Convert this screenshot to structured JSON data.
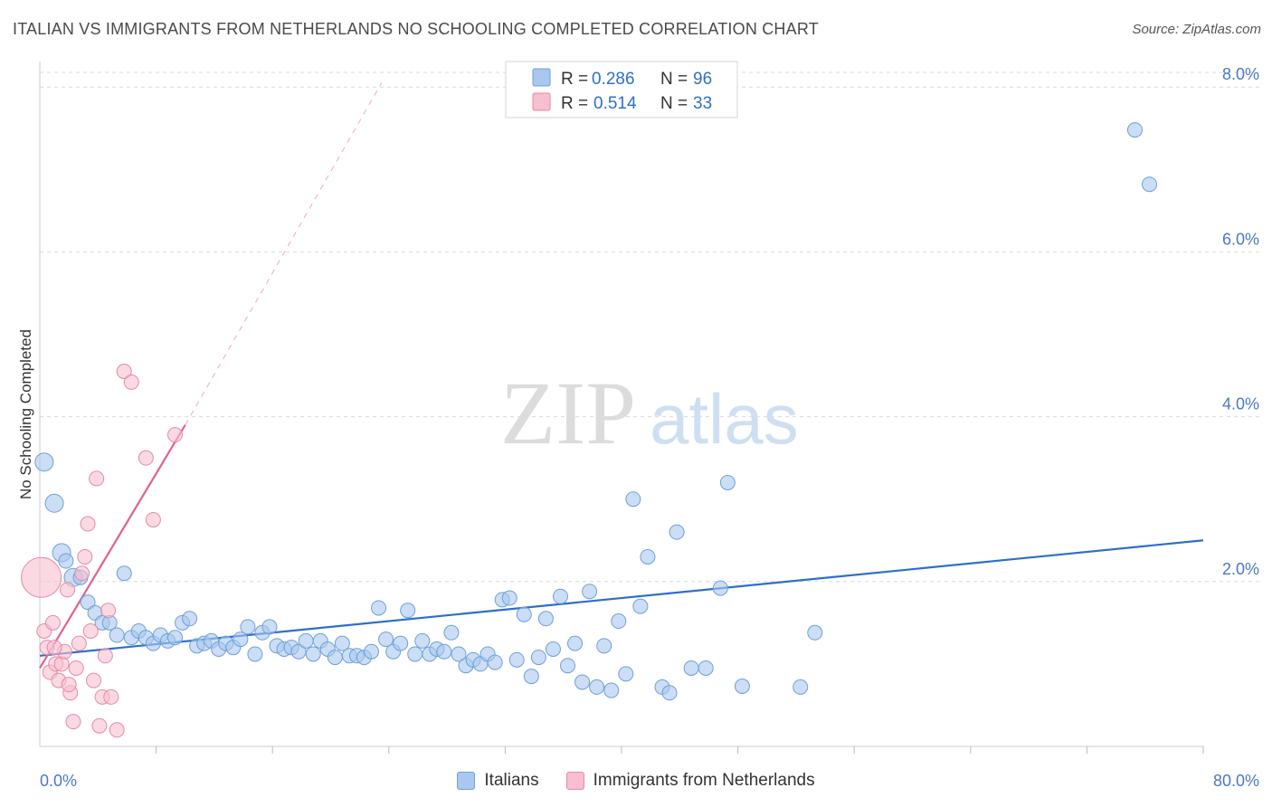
{
  "title": "ITALIAN VS IMMIGRANTS FROM NETHERLANDS NO SCHOOLING COMPLETED CORRELATION CHART",
  "source": "Source: ZipAtlas.com",
  "watermark": {
    "zip": "ZIP",
    "atlas": "atlas"
  },
  "colors": {
    "blue_fill": "#a9c8ef",
    "blue_stroke": "#6f9fd8",
    "blue_line": "#2d6fcc",
    "pink_fill": "#f7bfd0",
    "pink_stroke": "#e58aa6",
    "pink_line": "#e0618f",
    "tick_text": "#4a78c2",
    "grid": "#d9d9d9"
  },
  "legend": {
    "rows": [
      {
        "r_label": "R =",
        "r_value": "0.286",
        "n_label": "N =",
        "n_value": "96",
        "series": "blue"
      },
      {
        "r_label": "R =",
        "r_value": "0.514",
        "n_label": "N =",
        "n_value": "33",
        "series": "pink"
      }
    ]
  },
  "chart_data": {
    "type": "scatter",
    "title": "ITALIAN VS IMMIGRANTS FROM NETHERLANDS NO SCHOOLING COMPLETED CORRELATION CHART",
    "xlabel": "",
    "ylabel": "No Schooling Completed",
    "xlim": [
      0,
      80
    ],
    "ylim": [
      0,
      8.2
    ],
    "x_tick_labels": [
      "0.0%",
      "80.0%"
    ],
    "y_ticks": [
      2,
      4,
      6,
      8
    ],
    "y_tick_labels": [
      "2.0%",
      "4.0%",
      "6.0%",
      "8.0%"
    ],
    "grid": true,
    "legend_position": "top-center",
    "series": [
      {
        "name": "Italians",
        "color": "#a9c8ef",
        "trend": {
          "x": [
            0,
            80
          ],
          "y": [
            1.1,
            2.5
          ],
          "dashed_extension": false
        },
        "points": [
          [
            0.3,
            3.45,
            1
          ],
          [
            1.0,
            2.95,
            1
          ],
          [
            1.5,
            2.35,
            1
          ],
          [
            1.8,
            2.25,
            0
          ],
          [
            2.3,
            2.05,
            1
          ],
          [
            2.8,
            2.05,
            0
          ],
          [
            3.3,
            1.75,
            0
          ],
          [
            3.8,
            1.62,
            0
          ],
          [
            4.3,
            1.5,
            0
          ],
          [
            4.8,
            1.5,
            0
          ],
          [
            5.3,
            1.35,
            0
          ],
          [
            5.8,
            2.1,
            0
          ],
          [
            6.3,
            1.32,
            0
          ],
          [
            6.8,
            1.4,
            0
          ],
          [
            7.3,
            1.32,
            0
          ],
          [
            7.8,
            1.25,
            0
          ],
          [
            8.3,
            1.35,
            0
          ],
          [
            8.8,
            1.28,
            0
          ],
          [
            9.3,
            1.32,
            0
          ],
          [
            9.8,
            1.5,
            0
          ],
          [
            10.3,
            1.55,
            0
          ],
          [
            10.8,
            1.22,
            0
          ],
          [
            11.3,
            1.25,
            0
          ],
          [
            11.8,
            1.28,
            0
          ],
          [
            12.3,
            1.18,
            0
          ],
          [
            12.8,
            1.25,
            0
          ],
          [
            13.3,
            1.2,
            0
          ],
          [
            13.8,
            1.3,
            0
          ],
          [
            14.3,
            1.45,
            0
          ],
          [
            14.8,
            1.12,
            0
          ],
          [
            15.3,
            1.38,
            0
          ],
          [
            15.8,
            1.45,
            0
          ],
          [
            16.3,
            1.22,
            0
          ],
          [
            16.8,
            1.18,
            0
          ],
          [
            17.3,
            1.2,
            0
          ],
          [
            17.8,
            1.15,
            0
          ],
          [
            18.3,
            1.28,
            0
          ],
          [
            18.8,
            1.12,
            0
          ],
          [
            19.3,
            1.28,
            0
          ],
          [
            19.8,
            1.18,
            0
          ],
          [
            20.3,
            1.08,
            0
          ],
          [
            20.8,
            1.25,
            0
          ],
          [
            21.3,
            1.1,
            0
          ],
          [
            21.8,
            1.1,
            0
          ],
          [
            22.3,
            1.08,
            0
          ],
          [
            22.8,
            1.15,
            0
          ],
          [
            23.3,
            1.68,
            0
          ],
          [
            23.8,
            1.3,
            0
          ],
          [
            24.3,
            1.15,
            0
          ],
          [
            24.8,
            1.25,
            0
          ],
          [
            25.3,
            1.65,
            0
          ],
          [
            25.8,
            1.12,
            0
          ],
          [
            26.3,
            1.28,
            0
          ],
          [
            26.8,
            1.12,
            0
          ],
          [
            27.3,
            1.18,
            0
          ],
          [
            27.8,
            1.15,
            0
          ],
          [
            28.3,
            1.38,
            0
          ],
          [
            28.8,
            1.12,
            0
          ],
          [
            29.3,
            0.98,
            0
          ],
          [
            29.8,
            1.05,
            0
          ],
          [
            30.3,
            1.0,
            0
          ],
          [
            30.8,
            1.12,
            0
          ],
          [
            31.3,
            1.02,
            0
          ],
          [
            31.8,
            1.78,
            0
          ],
          [
            32.3,
            1.8,
            0
          ],
          [
            32.8,
            1.05,
            0
          ],
          [
            33.3,
            1.6,
            0
          ],
          [
            33.8,
            0.85,
            0
          ],
          [
            34.3,
            1.08,
            0
          ],
          [
            34.8,
            1.55,
            0
          ],
          [
            35.3,
            1.18,
            0
          ],
          [
            35.8,
            1.82,
            0
          ],
          [
            36.3,
            0.98,
            0
          ],
          [
            36.8,
            1.25,
            0
          ],
          [
            37.3,
            0.78,
            0
          ],
          [
            37.8,
            1.88,
            0
          ],
          [
            38.3,
            0.72,
            0
          ],
          [
            38.8,
            1.22,
            0
          ],
          [
            39.3,
            0.68,
            0
          ],
          [
            39.8,
            1.52,
            0
          ],
          [
            40.3,
            0.88,
            0
          ],
          [
            40.8,
            3.0,
            0
          ],
          [
            41.3,
            1.7,
            0
          ],
          [
            41.8,
            2.3,
            0
          ],
          [
            42.8,
            0.72,
            0
          ],
          [
            43.3,
            0.65,
            0
          ],
          [
            43.8,
            2.6,
            0
          ],
          [
            44.8,
            0.95,
            0
          ],
          [
            45.8,
            0.95,
            0
          ],
          [
            46.8,
            1.92,
            0
          ],
          [
            47.3,
            3.2,
            0
          ],
          [
            48.3,
            0.73,
            0
          ],
          [
            52.3,
            0.72,
            0
          ],
          [
            53.3,
            1.38,
            0
          ],
          [
            75.3,
            7.48,
            0
          ],
          [
            76.3,
            6.82,
            0
          ]
        ]
      },
      {
        "name": "Immigrants from Netherlands",
        "color": "#f7bfd0",
        "trend": {
          "x": [
            0,
            10
          ],
          "y": [
            0.95,
            3.9
          ],
          "dashed_extension": true,
          "dashed_to": [
            23.5,
            8.05
          ]
        },
        "points": [
          [
            0.1,
            2.05,
            2
          ],
          [
            0.3,
            1.4,
            0
          ],
          [
            0.5,
            1.2,
            0
          ],
          [
            0.7,
            0.9,
            0
          ],
          [
            0.9,
            1.5,
            0
          ],
          [
            1.1,
            1.0,
            0
          ],
          [
            1.3,
            0.8,
            0
          ],
          [
            1.5,
            1.0,
            0
          ],
          [
            1.7,
            1.15,
            0
          ],
          [
            1.9,
            1.9,
            0
          ],
          [
            2.1,
            0.65,
            0
          ],
          [
            2.3,
            0.3,
            0
          ],
          [
            2.5,
            0.95,
            0
          ],
          [
            2.7,
            1.25,
            0
          ],
          [
            2.9,
            2.1,
            0
          ],
          [
            3.1,
            2.3,
            0
          ],
          [
            3.3,
            2.7,
            0
          ],
          [
            3.5,
            1.4,
            0
          ],
          [
            3.7,
            0.8,
            0
          ],
          [
            3.9,
            3.25,
            0
          ],
          [
            4.1,
            0.25,
            0
          ],
          [
            4.3,
            0.6,
            0
          ],
          [
            4.5,
            1.1,
            0
          ],
          [
            4.7,
            1.65,
            0
          ],
          [
            4.9,
            0.6,
            0
          ],
          [
            5.3,
            0.2,
            0
          ],
          [
            5.8,
            4.55,
            0
          ],
          [
            6.3,
            4.42,
            0
          ],
          [
            7.3,
            3.5,
            0
          ],
          [
            7.8,
            2.75,
            0
          ],
          [
            9.3,
            3.78,
            0
          ],
          [
            1.0,
            1.2,
            0
          ],
          [
            2.0,
            0.75,
            0
          ]
        ]
      }
    ]
  },
  "bottom_legend": {
    "items": [
      {
        "label": "Italians",
        "series": "blue"
      },
      {
        "label": "Immigrants from Netherlands",
        "series": "pink"
      }
    ]
  }
}
